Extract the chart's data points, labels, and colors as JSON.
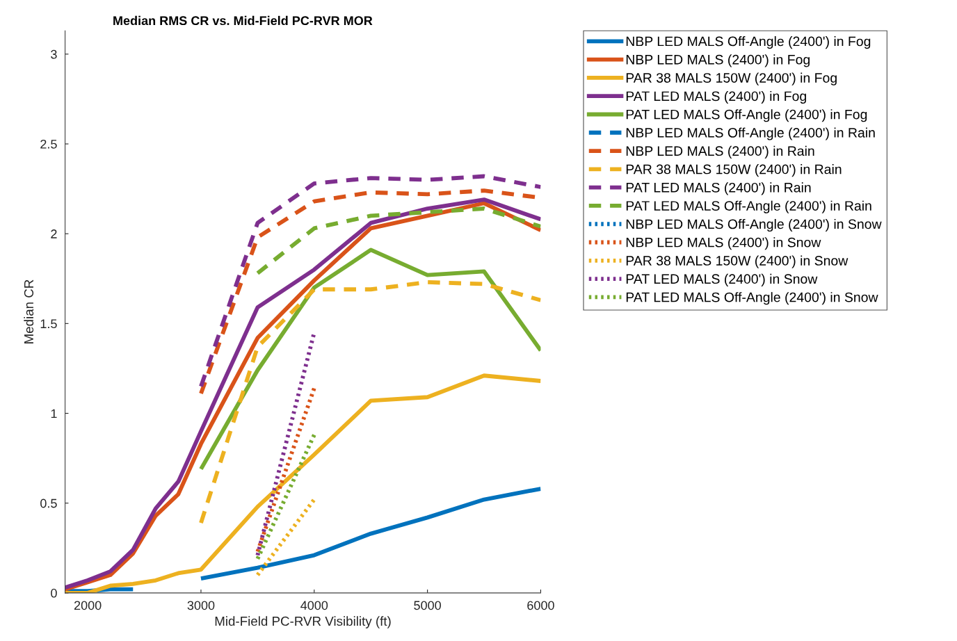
{
  "chart_data": {
    "type": "line",
    "title": "Median RMS CR vs. Mid-Field PC-RVR MOR",
    "xlabel": "Mid-Field PC-RVR Visibility (ft)",
    "ylabel": "Median CR",
    "x": [
      1800,
      2000,
      2200,
      2400,
      2600,
      2800,
      3000,
      3500,
      4000,
      4500,
      5000,
      5500,
      6000
    ],
    "xlim": [
      1800,
      6000
    ],
    "xticks": [
      2000,
      3000,
      4000,
      5000,
      6000
    ],
    "ylim": [
      0,
      3.13
    ],
    "yticks": [
      0,
      0.5,
      1,
      1.5,
      2,
      2.5,
      3
    ],
    "grid": false,
    "legend": "right",
    "marker": "none",
    "series": [
      {
        "name": "NBP LED MALS Off-Angle (2400') in Fog",
        "color": "#0072bd",
        "line_style": "solid",
        "values": [
          0.01,
          0.01,
          0.02,
          0.02,
          null,
          null,
          0.08,
          0.14,
          0.21,
          0.33,
          0.42,
          0.52,
          0.58
        ]
      },
      {
        "name": "NBP LED MALS (2400') in Fog",
        "color": "#d95319",
        "line_style": "solid",
        "values": [
          0.02,
          0.06,
          0.1,
          0.22,
          0.43,
          0.55,
          0.83,
          1.42,
          1.74,
          2.03,
          2.1,
          2.17,
          2.02
        ]
      },
      {
        "name": "PAR 38 MALS 150W (2400') in Fog",
        "color": "#edb120",
        "line_style": "solid",
        "values": [
          0.0,
          0.0,
          0.04,
          0.05,
          0.07,
          0.11,
          0.13,
          0.48,
          0.77,
          1.07,
          1.09,
          1.21,
          1.18
        ]
      },
      {
        "name": "PAT LED MALS (2400') in Fog",
        "color": "#7e2f8e",
        "line_style": "solid",
        "values": [
          0.03,
          0.07,
          0.12,
          0.24,
          0.47,
          0.62,
          0.9,
          1.59,
          1.8,
          2.06,
          2.14,
          2.19,
          2.08
        ]
      },
      {
        "name": "PAT LED MALS Off-Angle (2400') in Fog",
        "color": "#77ac30",
        "line_style": "solid",
        "values": [
          null,
          null,
          null,
          null,
          null,
          null,
          0.69,
          1.24,
          1.7,
          1.91,
          1.77,
          1.79,
          1.35
        ]
      },
      {
        "name": "NBP LED MALS Off-Angle (2400') in Rain",
        "color": "#0072bd",
        "line_style": "dashed",
        "values": [
          null,
          null,
          null,
          null,
          null,
          null,
          null,
          null,
          null,
          null,
          null,
          null,
          null
        ]
      },
      {
        "name": "NBP LED MALS (2400') in Rain",
        "color": "#d95319",
        "line_style": "dashed",
        "values": [
          null,
          null,
          null,
          null,
          null,
          null,
          1.11,
          1.98,
          2.18,
          2.23,
          2.22,
          2.24,
          2.2
        ]
      },
      {
        "name": "PAR 38 MALS 150W (2400') in Rain",
        "color": "#edb120",
        "line_style": "dashed",
        "values": [
          null,
          null,
          null,
          null,
          null,
          null,
          0.39,
          1.37,
          1.69,
          1.69,
          1.73,
          1.72,
          1.63
        ]
      },
      {
        "name": "PAT LED MALS (2400') in Rain",
        "color": "#7e2f8e",
        "line_style": "dashed",
        "values": [
          null,
          null,
          null,
          null,
          null,
          null,
          1.15,
          2.06,
          2.28,
          2.31,
          2.3,
          2.32,
          2.26
        ]
      },
      {
        "name": "PAT LED MALS Off-Angle (2400') in Rain",
        "color": "#77ac30",
        "line_style": "dashed",
        "values": [
          null,
          null,
          null,
          null,
          null,
          null,
          null,
          1.78,
          2.03,
          2.1,
          2.12,
          2.14,
          2.04
        ]
      },
      {
        "name": "NBP LED MALS Off-Angle (2400') in Snow",
        "color": "#0072bd",
        "line_style": "dotted",
        "values": [
          null,
          null,
          null,
          null,
          null,
          null,
          null,
          null,
          null,
          null,
          null,
          null,
          null
        ]
      },
      {
        "name": "NBP LED MALS (2400') in Snow",
        "color": "#d95319",
        "line_style": "dotted",
        "values": [
          null,
          null,
          null,
          null,
          null,
          null,
          null,
          0.23,
          1.14,
          null,
          null,
          null,
          null
        ]
      },
      {
        "name": "PAR 38 MALS 150W (2400') in Snow",
        "color": "#edb120",
        "line_style": "dotted",
        "values": [
          null,
          null,
          null,
          null,
          null,
          null,
          null,
          0.1,
          0.52,
          null,
          null,
          null,
          null
        ]
      },
      {
        "name": "PAT LED MALS (2400') in Snow",
        "color": "#7e2f8e",
        "line_style": "dotted",
        "values": [
          null,
          null,
          null,
          null,
          null,
          null,
          null,
          0.21,
          1.45,
          null,
          null,
          null,
          null
        ]
      },
      {
        "name": "PAT LED MALS Off-Angle (2400') in Snow",
        "color": "#77ac30",
        "line_style": "dotted",
        "values": [
          null,
          null,
          null,
          null,
          null,
          null,
          null,
          0.19,
          0.88,
          null,
          null,
          null,
          null
        ]
      }
    ]
  }
}
